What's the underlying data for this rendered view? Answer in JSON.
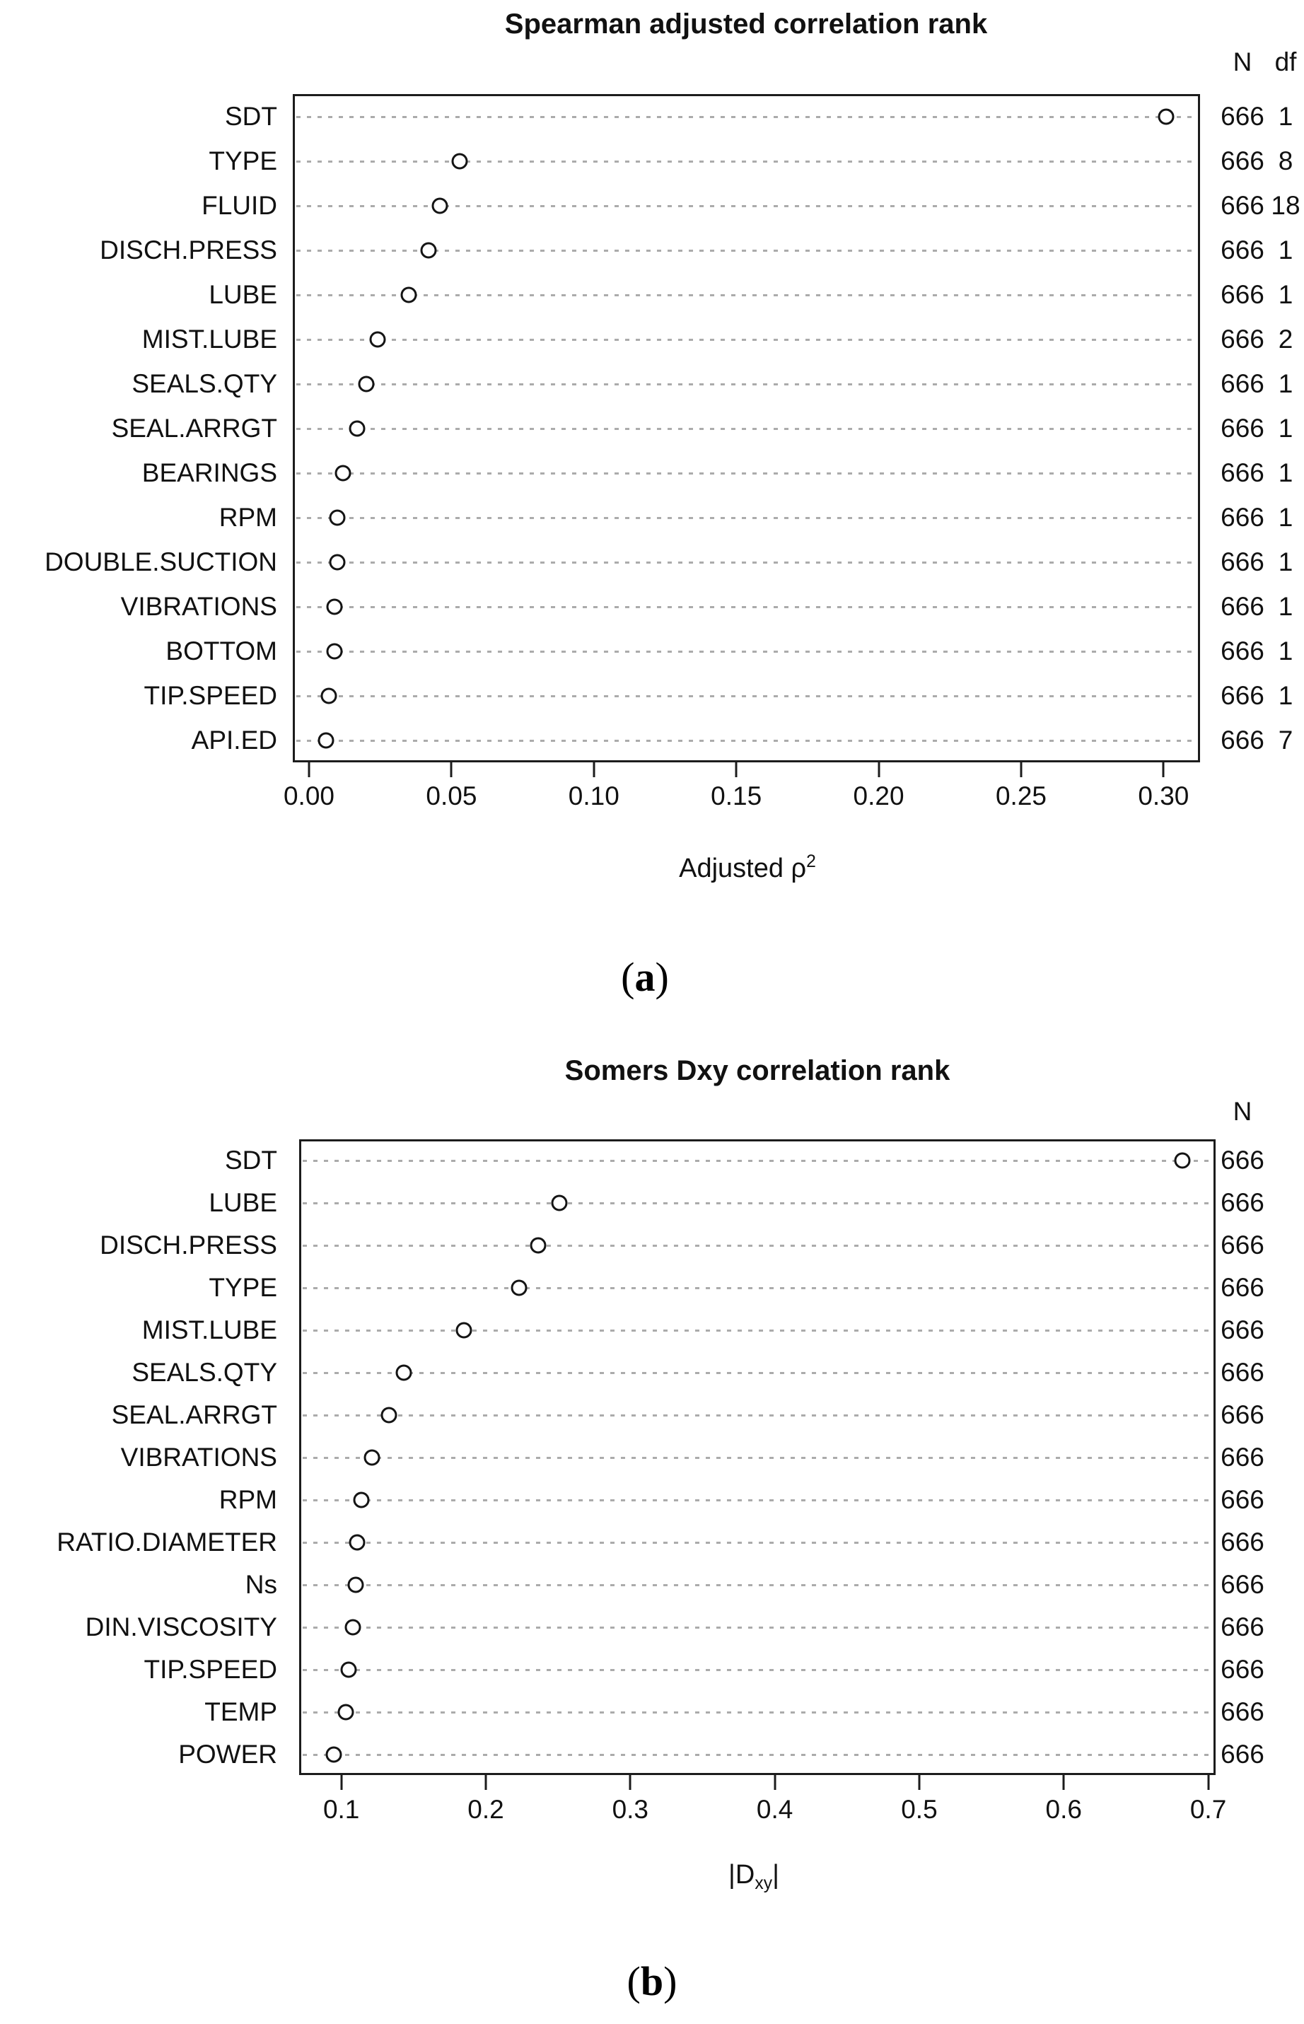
{
  "figure": {
    "background": "#ffffff",
    "text_color": "#111111",
    "grid_color": "#ababab",
    "box_color": "#1c1c1c"
  },
  "chart_data": [
    {
      "type": "scatter",
      "panel": "a",
      "title": "Spearman adjusted correlation rank",
      "xlabel": {
        "pre": "Adjusted ρ",
        "sup": "2",
        "sub": "",
        "post": ""
      },
      "xlim": [
        -0.00571,
        0.31282
      ],
      "grid": "horizontal dotted",
      "marker": "open circle",
      "xticks": [
        {
          "v": 0.0,
          "label": "0.00"
        },
        {
          "v": 0.05,
          "label": "0.05"
        },
        {
          "v": 0.1,
          "label": "0.10"
        },
        {
          "v": 0.15,
          "label": "0.15"
        },
        {
          "v": 0.2,
          "label": "0.20"
        },
        {
          "v": 0.25,
          "label": "0.25"
        },
        {
          "v": 0.3,
          "label": "0.30"
        }
      ],
      "right_columns": [
        "N",
        "df"
      ],
      "rows": [
        {
          "label": "SDT",
          "value": 0.301,
          "N": "666",
          "df": "1"
        },
        {
          "label": "TYPE",
          "value": 0.053,
          "N": "666",
          "df": "8"
        },
        {
          "label": "FLUID",
          "value": 0.046,
          "N": "666",
          "df": "18"
        },
        {
          "label": "DISCH.PRESS",
          "value": 0.042,
          "N": "666",
          "df": "1"
        },
        {
          "label": "LUBE",
          "value": 0.035,
          "N": "666",
          "df": "1"
        },
        {
          "label": "MIST.LUBE",
          "value": 0.024,
          "N": "666",
          "df": "2"
        },
        {
          "label": "SEALS.QTY",
          "value": 0.02,
          "N": "666",
          "df": "1"
        },
        {
          "label": "SEAL.ARRGT",
          "value": 0.017,
          "N": "666",
          "df": "1"
        },
        {
          "label": "BEARINGS",
          "value": 0.012,
          "N": "666",
          "df": "1"
        },
        {
          "label": "RPM",
          "value": 0.01,
          "N": "666",
          "df": "1"
        },
        {
          "label": "DOUBLE.SUCTION",
          "value": 0.01,
          "N": "666",
          "df": "1"
        },
        {
          "label": "VIBRATIONS",
          "value": 0.009,
          "N": "666",
          "df": "1"
        },
        {
          "label": "BOTTOM",
          "value": 0.009,
          "N": "666",
          "df": "1"
        },
        {
          "label": "TIP.SPEED",
          "value": 0.007,
          "N": "666",
          "df": "1"
        },
        {
          "label": "API.ED",
          "value": 0.006,
          "N": "666",
          "df": "7"
        }
      ],
      "caption": {
        "open": "(",
        "letter": "a",
        "close": ")"
      }
    },
    {
      "type": "scatter",
      "panel": "b",
      "title": "Somers Dxy correlation rank",
      "xlabel": {
        "pre": "|D",
        "sup": "",
        "sub": "xy",
        "post": "|"
      },
      "xlim": [
        0.0708,
        0.7051
      ],
      "grid": "horizontal dotted",
      "marker": "open circle",
      "xticks": [
        {
          "v": 0.1,
          "label": "0.1"
        },
        {
          "v": 0.2,
          "label": "0.2"
        },
        {
          "v": 0.3,
          "label": "0.3"
        },
        {
          "v": 0.4,
          "label": "0.4"
        },
        {
          "v": 0.5,
          "label": "0.5"
        },
        {
          "v": 0.6,
          "label": "0.6"
        },
        {
          "v": 0.7,
          "label": "0.7"
        }
      ],
      "right_columns": [
        "N"
      ],
      "rows": [
        {
          "label": "SDT",
          "value": 0.682,
          "N": "666"
        },
        {
          "label": "LUBE",
          "value": 0.251,
          "N": "666"
        },
        {
          "label": "DISCH.PRESS",
          "value": 0.236,
          "N": "666"
        },
        {
          "label": "TYPE",
          "value": 0.223,
          "N": "666"
        },
        {
          "label": "MIST.LUBE",
          "value": 0.185,
          "N": "666"
        },
        {
          "label": "SEALS.QTY",
          "value": 0.143,
          "N": "666"
        },
        {
          "label": "SEAL.ARRGT",
          "value": 0.133,
          "N": "666"
        },
        {
          "label": "VIBRATIONS",
          "value": 0.121,
          "N": "666"
        },
        {
          "label": "RPM",
          "value": 0.114,
          "N": "666"
        },
        {
          "label": "RATIO.DIAMETER",
          "value": 0.111,
          "N": "666"
        },
        {
          "label": "Ns",
          "value": 0.11,
          "N": "666"
        },
        {
          "label": "DIN.VISCOSITY",
          "value": 0.108,
          "N": "666"
        },
        {
          "label": "TIP.SPEED",
          "value": 0.105,
          "N": "666"
        },
        {
          "label": "TEMP",
          "value": 0.103,
          "N": "666"
        },
        {
          "label": "POWER",
          "value": 0.095,
          "N": "666"
        }
      ],
      "caption": {
        "open": "(",
        "letter": "b",
        "close": ")"
      }
    }
  ]
}
